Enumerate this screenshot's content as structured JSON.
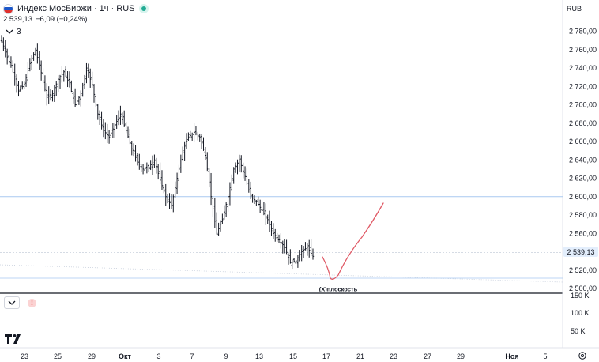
{
  "header": {
    "symbol_title": "Индекс МосБиржи · 1ч · RUS",
    "price": "2 539,13",
    "change": "−6,09 (−0,24%)",
    "indicators_count": "3",
    "currency": "RUB"
  },
  "annotation": {
    "label": "(X)плоскость"
  },
  "volume_pane": {
    "axis_labels": [
      "150 K",
      "100 K",
      "50 K"
    ]
  },
  "colors": {
    "horizontal_line": "#a9c9f0",
    "drawn_curve": "#e05a66",
    "current_price_tag_bg": "#e3eefc",
    "bars": "#131722"
  },
  "chart_data": {
    "type": "ohlc",
    "y_ticks": [
      "2 780,00",
      "2 760,00",
      "2 740,00",
      "2 720,00",
      "2 700,00",
      "2 680,00",
      "2 660,00",
      "2 640,00",
      "2 620,00",
      "2 600,00",
      "2 580,00",
      "2 560,00",
      "2 540,00",
      "2 520,00",
      "2 500,00"
    ],
    "x_ticks": [
      "23",
      "25",
      "29",
      "Окт",
      "3",
      "7",
      "9",
      "13",
      "15",
      "17",
      "21",
      "23",
      "27",
      "29",
      "Ноя",
      "5"
    ],
    "current_price_label": "2 539,13",
    "ylim": [
      2500,
      2790
    ],
    "horizontal_line_level": 2600,
    "approx_closes": [
      2770,
      2752,
      2738,
      2715,
      2722,
      2745,
      2760,
      2735,
      2708,
      2712,
      2728,
      2736,
      2722,
      2700,
      2712,
      2740,
      2722,
      2690,
      2672,
      2665,
      2678,
      2690,
      2672,
      2652,
      2638,
      2630,
      2632,
      2640,
      2618,
      2600,
      2590,
      2620,
      2650,
      2665,
      2670,
      2665,
      2645,
      2600,
      2560,
      2575,
      2600,
      2630,
      2640,
      2622,
      2600,
      2595,
      2585,
      2575,
      2560,
      2553,
      2545,
      2528,
      2530,
      2540,
      2545,
      2535
    ]
  }
}
